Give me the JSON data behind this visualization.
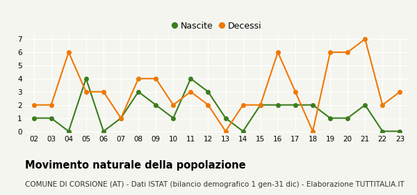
{
  "years": [
    "02",
    "03",
    "04",
    "05",
    "06",
    "07",
    "08",
    "09",
    "10",
    "11",
    "12",
    "13",
    "14",
    "15",
    "16",
    "17",
    "18",
    "19",
    "20",
    "21",
    "22",
    "23"
  ],
  "nascite": [
    1,
    1,
    0,
    4,
    0,
    1,
    3,
    2,
    1,
    4,
    3,
    1,
    0,
    2,
    2,
    2,
    2,
    1,
    1,
    2,
    0,
    0
  ],
  "decessi": [
    2,
    2,
    6,
    3,
    3,
    1,
    4,
    4,
    2,
    3,
    2,
    0,
    2,
    2,
    6,
    3,
    0,
    6,
    6,
    7,
    2,
    3
  ],
  "nascite_color": "#3a7d1e",
  "decessi_color": "#f07800",
  "background_color": "#f5f5f0",
  "ylim": [
    0,
    7
  ],
  "yticks": [
    0,
    1,
    2,
    3,
    4,
    5,
    6,
    7
  ],
  "title": "Movimento naturale della popolazione",
  "subtitle": "COMUNE DI CORSIONE (AT) - Dati ISTAT (bilancio demografico 1 gen-31 dic) - Elaborazione TUTTITALIA.IT",
  "legend_labels": [
    "Nascite",
    "Decessi"
  ],
  "title_fontsize": 10.5,
  "subtitle_fontsize": 7.5,
  "marker_size": 4,
  "linewidth": 1.5
}
